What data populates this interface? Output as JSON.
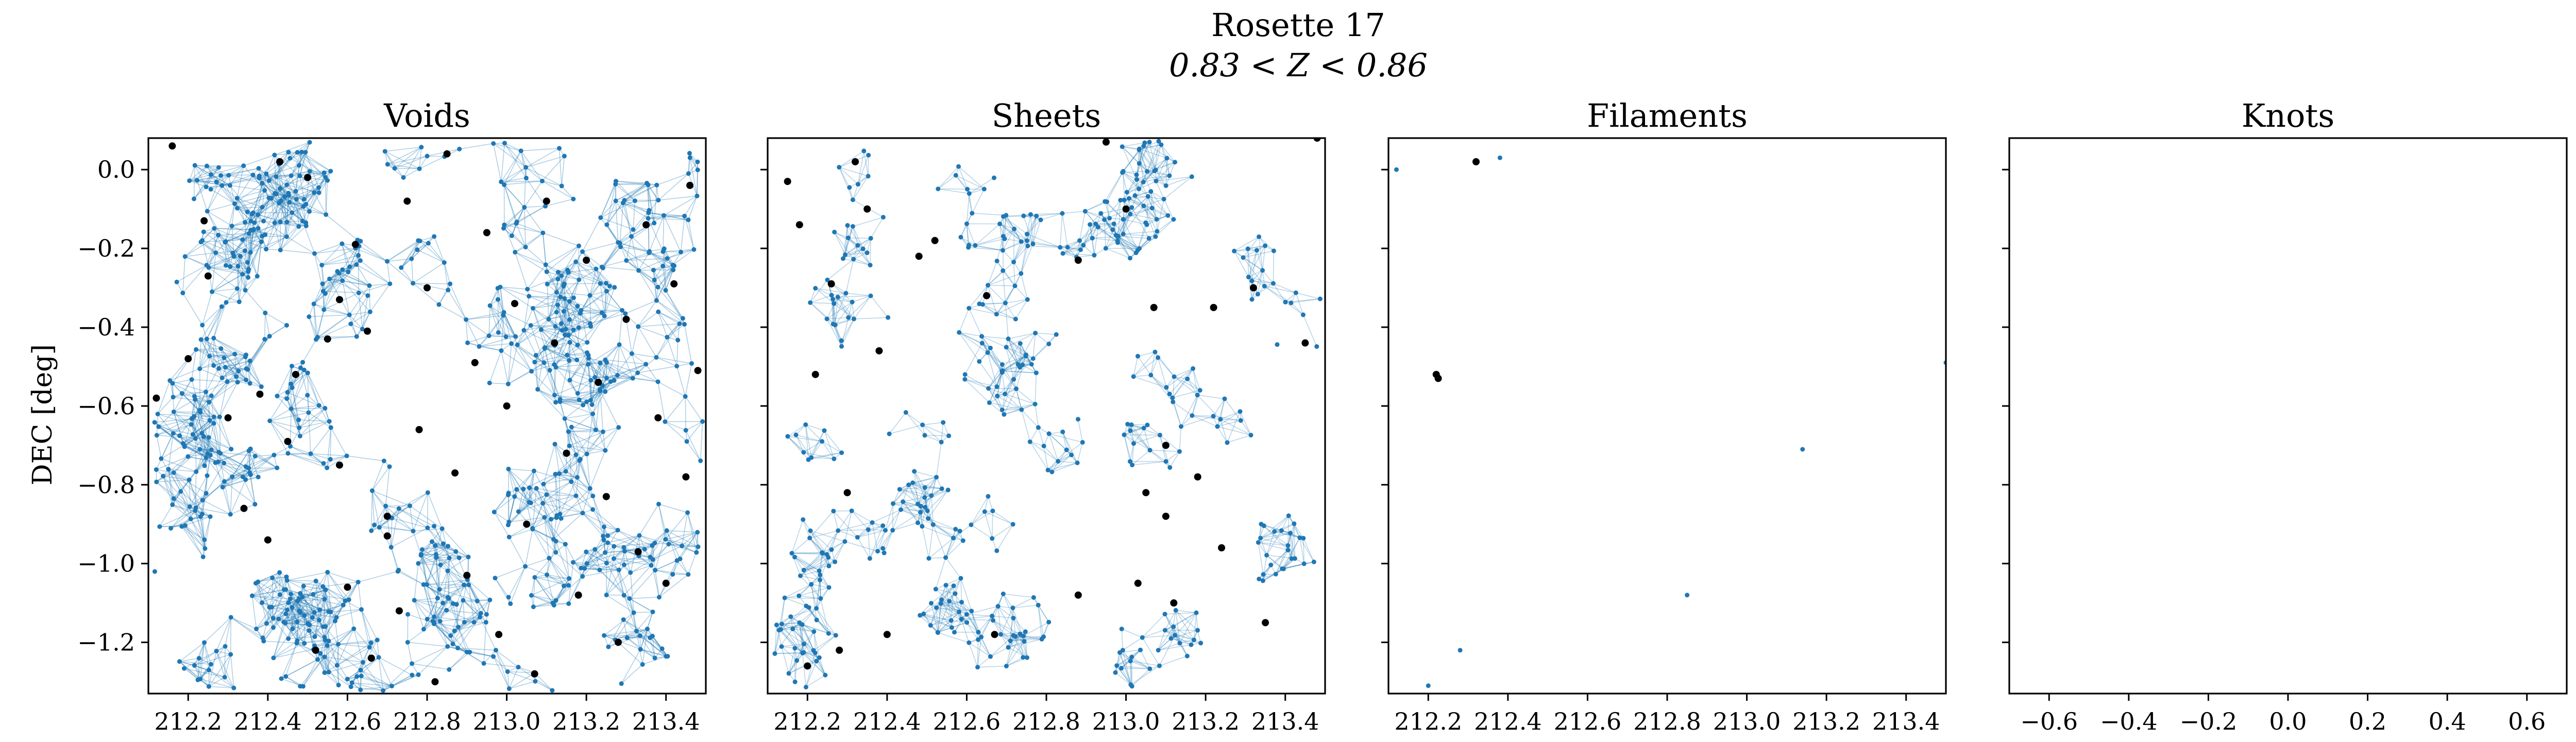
{
  "figure": {
    "title_line1": "Rosette 17",
    "title_line2": "0.83 < Z < 0.86",
    "ylabel": "DEC [deg]"
  },
  "colors": {
    "galaxy": "#1f77b4",
    "edge": "#1f77b4",
    "highlight": "#000000",
    "axes": "#000000",
    "background": "#ffffff"
  },
  "chart_data": [
    {
      "type": "scatter",
      "title": "Voids",
      "xlim": [
        212.1,
        213.5
      ],
      "ylim": [
        -1.33,
        0.08
      ],
      "xticks": [
        212.2,
        212.4,
        212.6,
        212.8,
        213.0,
        213.2,
        213.4
      ],
      "yticks": [
        0.0,
        -0.2,
        -0.4,
        -0.6,
        -0.8,
        -1.0,
        -1.2
      ],
      "ytick_labels": [
        "0.0",
        "−0.2",
        "−0.4",
        "−0.6",
        "−0.8",
        "−1.0",
        "−1.2"
      ],
      "show_ytick_labels": true,
      "series": [
        {
          "values": [
            [
              212.12,
              -0.58
            ],
            [
              212.16,
              0.06
            ],
            [
              212.2,
              -0.48
            ],
            [
              212.24,
              -0.13
            ],
            [
              212.25,
              -0.27
            ],
            [
              212.3,
              -0.63
            ],
            [
              212.34,
              -0.86
            ],
            [
              212.38,
              -0.57
            ],
            [
              212.4,
              -0.94
            ],
            [
              212.43,
              0.02
            ],
            [
              212.45,
              -0.69
            ],
            [
              212.47,
              -0.52
            ],
            [
              212.5,
              -0.02
            ],
            [
              212.52,
              -1.22
            ],
            [
              212.55,
              -0.43
            ],
            [
              212.58,
              -0.75
            ],
            [
              212.6,
              -1.06
            ],
            [
              212.62,
              -0.19
            ],
            [
              212.65,
              -0.41
            ],
            [
              212.66,
              -1.24
            ],
            [
              212.7,
              -0.88
            ],
            [
              212.73,
              -1.12
            ],
            [
              212.75,
              -0.08
            ],
            [
              212.78,
              -0.66
            ],
            [
              212.8,
              -0.3
            ],
            [
              212.82,
              -1.3
            ],
            [
              212.85,
              0.04
            ],
            [
              212.87,
              -0.77
            ],
            [
              212.9,
              -1.03
            ],
            [
              212.92,
              -0.49
            ],
            [
              212.95,
              -0.16
            ],
            [
              212.98,
              -1.18
            ],
            [
              213.0,
              -0.6
            ],
            [
              213.02,
              -0.34
            ],
            [
              213.05,
              -0.9
            ],
            [
              213.07,
              -1.28
            ],
            [
              213.1,
              -0.08
            ],
            [
              213.12,
              -0.44
            ],
            [
              213.15,
              -0.72
            ],
            [
              213.18,
              -1.08
            ],
            [
              213.2,
              -0.23
            ],
            [
              213.23,
              -0.54
            ],
            [
              213.25,
              -0.83
            ],
            [
              213.28,
              -1.2
            ],
            [
              213.3,
              -0.38
            ],
            [
              213.33,
              -0.97
            ],
            [
              213.35,
              -0.14
            ],
            [
              213.38,
              -0.63
            ],
            [
              213.4,
              -1.05
            ],
            [
              213.42,
              -0.29
            ],
            [
              213.45,
              -0.78
            ],
            [
              213.46,
              -0.04
            ],
            [
              213.48,
              -0.51
            ],
            [
              212.7,
              -0.93
            ],
            [
              212.58,
              -0.33
            ]
          ]
        }
      ]
    },
    {
      "type": "scatter",
      "title": "Sheets",
      "xlim": [
        212.1,
        213.5
      ],
      "ylim": [
        -1.33,
        0.08
      ],
      "xticks": [
        212.2,
        212.4,
        212.6,
        212.8,
        213.0,
        213.2,
        213.4
      ],
      "yticks": [
        0.0,
        -0.2,
        -0.4,
        -0.6,
        -0.8,
        -1.0,
        -1.2
      ],
      "show_ytick_labels": false,
      "series": [
        {
          "values": [
            [
              212.15,
              -0.03
            ],
            [
              212.18,
              -0.14
            ],
            [
              212.22,
              -0.52
            ],
            [
              212.26,
              -0.29
            ],
            [
              212.28,
              -1.22
            ],
            [
              212.32,
              0.02
            ],
            [
              212.35,
              -0.1
            ],
            [
              212.38,
              -0.46
            ],
            [
              212.4,
              -1.18
            ],
            [
              212.48,
              -0.22
            ],
            [
              212.52,
              -0.18
            ],
            [
              212.65,
              -0.32
            ],
            [
              212.67,
              -1.18
            ],
            [
              212.88,
              -0.23
            ],
            [
              212.88,
              -1.08
            ],
            [
              212.95,
              0.07
            ],
            [
              213.0,
              -0.1
            ],
            [
              213.03,
              -1.05
            ],
            [
              213.05,
              -0.82
            ],
            [
              213.07,
              -0.35
            ],
            [
              213.1,
              -0.7
            ],
            [
              213.1,
              -0.88
            ],
            [
              213.12,
              -1.1
            ],
            [
              213.18,
              -0.78
            ],
            [
              213.22,
              -0.35
            ],
            [
              213.24,
              -0.96
            ],
            [
              213.32,
              -0.3
            ],
            [
              213.35,
              -1.15
            ],
            [
              213.45,
              -0.44
            ],
            [
              213.48,
              0.08
            ],
            [
              212.3,
              -0.82
            ],
            [
              212.2,
              -1.26
            ]
          ]
        }
      ]
    },
    {
      "type": "scatter",
      "title": "Filaments",
      "xlim": [
        212.1,
        213.5
      ],
      "ylim": [
        -1.33,
        0.08
      ],
      "xticks": [
        212.2,
        212.4,
        212.6,
        212.8,
        213.0,
        213.2,
        213.4
      ],
      "yticks": [
        0.0,
        -0.2,
        -0.4,
        -0.6,
        -0.8,
        -1.0,
        -1.2
      ],
      "show_ytick_labels": false,
      "series": [
        {
          "values": [
            [
              212.32,
              0.02
            ],
            [
              212.22,
              -0.52
            ],
            [
              212.225,
              -0.53
            ]
          ]
        }
      ]
    },
    {
      "type": "scatter",
      "title": "Knots",
      "xlim": [
        -0.7,
        0.7
      ],
      "ylim": [
        -1.33,
        0.08
      ],
      "xticks": [
        -0.6,
        -0.4,
        -0.2,
        0.0,
        0.2,
        0.4,
        0.6
      ],
      "xtick_labels": [
        "−0.6",
        "−0.4",
        "−0.2",
        "0.0",
        "0.2",
        "0.4",
        "0.6"
      ],
      "yticks": [
        0.0,
        -0.2,
        -0.4,
        -0.6,
        -0.8,
        -1.0,
        -1.2
      ],
      "show_ytick_labels": false,
      "series": []
    }
  ]
}
